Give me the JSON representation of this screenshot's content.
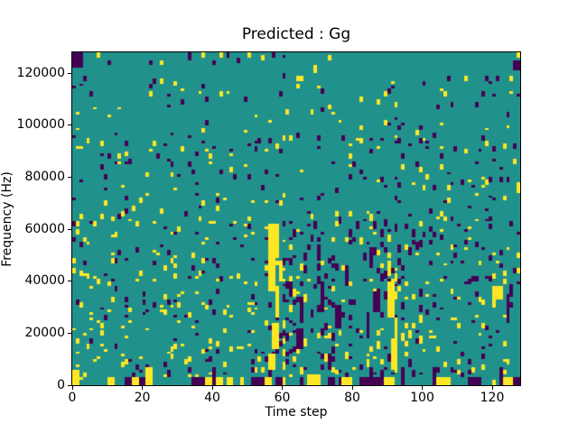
{
  "chart_data": {
    "type": "heatmap",
    "title": "Predicted : Gg",
    "xlabel": "Time step",
    "ylabel": "Frequency (Hz)",
    "x_ticks": [
      0,
      20,
      40,
      60,
      80,
      100,
      120
    ],
    "y_ticks": [
      0,
      20000,
      40000,
      60000,
      80000,
      100000,
      120000
    ],
    "x_range": [
      0,
      128
    ],
    "y_range": [
      0,
      128000
    ],
    "grid": {
      "cols": 128,
      "rows": 128,
      "hz_per_row": 1000
    },
    "legend": "none",
    "colormap": {
      "name": "viridis-ternary",
      "low": "#440154",
      "mid": "#21918c",
      "high": "#fde725"
    },
    "background_value": "mid",
    "value_meaning": {
      "low": "class -1 (purple)",
      "mid": "class 0 (teal)",
      "high": "class 1 (yellow)"
    },
    "noise": {
      "seed": 42,
      "regions": [
        {
          "x0": 0,
          "x1": 128,
          "y0": 96,
          "y1": 117,
          "py": 0.016,
          "pp": 0.016,
          "run": 2
        },
        {
          "x0": 0,
          "x1": 128,
          "y0": 117,
          "y1": 128,
          "py": 0.004,
          "pp": 0.005,
          "run": 2
        },
        {
          "x0": 0,
          "x1": 64,
          "y0": 64,
          "y1": 96,
          "py": 0.02,
          "pp": 0.02,
          "run": 2
        },
        {
          "x0": 64,
          "x1": 128,
          "y0": 64,
          "y1": 96,
          "py": 0.022,
          "pp": 0.025,
          "run": 2
        },
        {
          "x0": 0,
          "x1": 56,
          "y0": 2,
          "y1": 64,
          "py": 0.04,
          "pp": 0.032,
          "run": 2
        },
        {
          "x0": 56,
          "x1": 100,
          "y0": 2,
          "y1": 64,
          "py": 0.05,
          "pp": 0.06,
          "run": 3
        },
        {
          "x0": 100,
          "x1": 128,
          "y0": 2,
          "y1": 64,
          "py": 0.035,
          "pp": 0.04,
          "run": 2
        }
      ]
    },
    "features": [
      {
        "x": 0,
        "y": 122,
        "w": 3,
        "h": 6,
        "c": "p"
      },
      {
        "x": 7,
        "y": 126,
        "w": 1,
        "h": 2,
        "c": "y"
      },
      {
        "x": 22,
        "y": 123,
        "w": 1,
        "h": 2,
        "c": "p"
      },
      {
        "x": 25,
        "y": 123,
        "w": 1,
        "h": 2,
        "c": "y"
      },
      {
        "x": 33,
        "y": 125,
        "w": 1,
        "h": 3,
        "c": "p"
      },
      {
        "x": 37,
        "y": 126,
        "w": 1,
        "h": 2,
        "c": "y"
      },
      {
        "x": 40,
        "y": 123,
        "w": 1,
        "h": 2,
        "c": "p"
      },
      {
        "x": 42,
        "y": 126,
        "w": 1,
        "h": 2,
        "c": "y"
      },
      {
        "x": 44,
        "y": 126,
        "w": 1,
        "h": 2,
        "c": "p"
      },
      {
        "x": 47,
        "y": 124,
        "w": 1,
        "h": 2,
        "c": "p"
      },
      {
        "x": 50,
        "y": 126,
        "w": 1,
        "h": 2,
        "c": "y"
      },
      {
        "x": 54,
        "y": 125,
        "w": 1,
        "h": 2,
        "c": "y"
      },
      {
        "x": 57,
        "y": 126,
        "w": 1,
        "h": 2,
        "c": "p"
      },
      {
        "x": 60,
        "y": 118,
        "w": 1,
        "h": 2,
        "c": "p"
      },
      {
        "x": 64,
        "y": 117,
        "w": 2,
        "h": 2,
        "c": "y"
      },
      {
        "x": 69,
        "y": 120,
        "w": 1,
        "h": 3,
        "c": "y"
      },
      {
        "x": 73,
        "y": 125,
        "w": 1,
        "h": 2,
        "c": "y"
      },
      {
        "x": 107,
        "y": 117,
        "w": 1,
        "h": 2,
        "c": "p"
      },
      {
        "x": 112,
        "y": 117,
        "w": 1,
        "h": 2,
        "c": "y"
      },
      {
        "x": 118,
        "y": 117,
        "w": 1,
        "h": 2,
        "c": "p"
      },
      {
        "x": 121,
        "y": 117,
        "w": 1,
        "h": 2,
        "c": "p"
      },
      {
        "x": 125,
        "y": 117,
        "w": 1,
        "h": 2,
        "c": "y"
      },
      {
        "x": 126,
        "y": 121,
        "w": 2,
        "h": 4,
        "c": "p"
      },
      {
        "x": 127,
        "y": 126,
        "w": 1,
        "h": 2,
        "c": "y"
      },
      {
        "x": 0,
        "y": 0,
        "w": 2,
        "h": 6,
        "c": "y"
      },
      {
        "x": 10,
        "y": 0,
        "w": 2,
        "h": 3,
        "c": "y"
      },
      {
        "x": 15,
        "y": 0,
        "w": 2,
        "h": 3,
        "c": "p"
      },
      {
        "x": 17,
        "y": 0,
        "w": 2,
        "h": 3,
        "c": "y"
      },
      {
        "x": 19,
        "y": 0,
        "w": 2,
        "h": 3,
        "c": "p"
      },
      {
        "x": 21,
        "y": 0,
        "w": 2,
        "h": 7,
        "c": "y"
      },
      {
        "x": 27,
        "y": 3,
        "w": 1,
        "h": 3,
        "c": "p"
      },
      {
        "x": 34,
        "y": 0,
        "w": 5,
        "h": 3,
        "c": "p"
      },
      {
        "x": 38,
        "y": 0,
        "w": 2,
        "h": 3,
        "c": "y"
      },
      {
        "x": 40,
        "y": 0,
        "w": 1,
        "h": 7,
        "c": "p"
      },
      {
        "x": 41,
        "y": 0,
        "w": 2,
        "h": 3,
        "c": "y"
      },
      {
        "x": 44,
        "y": 0,
        "w": 2,
        "h": 3,
        "c": "y"
      },
      {
        "x": 48,
        "y": 0,
        "w": 1,
        "h": 3,
        "c": "y"
      },
      {
        "x": 51,
        "y": 0,
        "w": 4,
        "h": 3,
        "c": "p"
      },
      {
        "x": 55,
        "y": 0,
        "w": 2,
        "h": 3,
        "c": "y"
      },
      {
        "x": 58,
        "y": 0,
        "w": 2,
        "h": 3,
        "c": "p"
      },
      {
        "x": 60,
        "y": 0,
        "w": 1,
        "h": 3,
        "c": "y"
      },
      {
        "x": 65,
        "y": 0,
        "w": 1,
        "h": 3,
        "c": "p"
      },
      {
        "x": 67,
        "y": 0,
        "w": 4,
        "h": 4,
        "c": "y"
      },
      {
        "x": 73,
        "y": 0,
        "w": 2,
        "h": 3,
        "c": "p"
      },
      {
        "x": 76,
        "y": 0,
        "w": 1,
        "h": 3,
        "c": "p"
      },
      {
        "x": 77,
        "y": 0,
        "w": 3,
        "h": 3,
        "c": "y"
      },
      {
        "x": 82,
        "y": 0,
        "w": 7,
        "h": 3,
        "c": "p"
      },
      {
        "x": 85,
        "y": 0,
        "w": 1,
        "h": 7,
        "c": "p"
      },
      {
        "x": 89,
        "y": 0,
        "w": 3,
        "h": 3,
        "c": "y"
      },
      {
        "x": 94,
        "y": 0,
        "w": 1,
        "h": 7,
        "c": "p"
      },
      {
        "x": 97,
        "y": 3,
        "w": 1,
        "h": 3,
        "c": "p"
      },
      {
        "x": 103,
        "y": 0,
        "w": 1,
        "h": 7,
        "c": "p"
      },
      {
        "x": 104,
        "y": 0,
        "w": 4,
        "h": 3,
        "c": "y"
      },
      {
        "x": 113,
        "y": 0,
        "w": 4,
        "h": 3,
        "c": "p"
      },
      {
        "x": 120,
        "y": 0,
        "w": 1,
        "h": 2,
        "c": "y"
      },
      {
        "x": 122,
        "y": 0,
        "w": 1,
        "h": 7,
        "c": "p"
      },
      {
        "x": 123,
        "y": 0,
        "w": 3,
        "h": 3,
        "c": "y"
      },
      {
        "x": 126,
        "y": 0,
        "w": 2,
        "h": 3,
        "c": "p"
      },
      {
        "x": 56,
        "y": 6,
        "w": 2,
        "h": 6,
        "c": "y"
      },
      {
        "x": 57,
        "y": 14,
        "w": 2,
        "h": 10,
        "c": "y"
      },
      {
        "x": 58,
        "y": 26,
        "w": 1,
        "h": 12,
        "c": "y"
      },
      {
        "x": 56,
        "y": 36,
        "w": 2,
        "h": 16,
        "c": "y"
      },
      {
        "x": 56,
        "y": 52,
        "w": 3,
        "h": 10,
        "c": "y"
      },
      {
        "x": 59,
        "y": 40,
        "w": 1,
        "h": 8,
        "c": "y"
      },
      {
        "x": 62,
        "y": 34,
        "w": 1,
        "h": 6,
        "c": "p"
      },
      {
        "x": 64,
        "y": 14,
        "w": 2,
        "h": 8,
        "c": "p"
      },
      {
        "x": 65,
        "y": 24,
        "w": 1,
        "h": 10,
        "c": "p"
      },
      {
        "x": 70,
        "y": 48,
        "w": 1,
        "h": 6,
        "c": "p"
      },
      {
        "x": 71,
        "y": 28,
        "w": 1,
        "h": 12,
        "c": "p"
      },
      {
        "x": 73,
        "y": 6,
        "w": 1,
        "h": 6,
        "c": "p"
      },
      {
        "x": 75,
        "y": 22,
        "w": 2,
        "h": 9,
        "c": "p"
      },
      {
        "x": 78,
        "y": 38,
        "w": 1,
        "h": 8,
        "c": "p"
      },
      {
        "x": 84,
        "y": 18,
        "w": 1,
        "h": 10,
        "c": "p"
      },
      {
        "x": 85,
        "y": 45,
        "w": 1,
        "h": 5,
        "c": "p"
      },
      {
        "x": 86,
        "y": 28,
        "w": 2,
        "h": 8,
        "c": "p"
      },
      {
        "x": 90,
        "y": 26,
        "w": 2,
        "h": 14,
        "c": "y"
      },
      {
        "x": 91,
        "y": 6,
        "w": 2,
        "h": 12,
        "c": "y"
      },
      {
        "x": 90,
        "y": 42,
        "w": 1,
        "h": 6,
        "c": "y"
      },
      {
        "x": 92,
        "y": 18,
        "w": 1,
        "h": 8,
        "c": "y"
      },
      {
        "x": 120,
        "y": 30,
        "w": 1,
        "h": 8,
        "c": "y"
      },
      {
        "x": 121,
        "y": 33,
        "w": 2,
        "h": 5,
        "c": "y"
      },
      {
        "x": 124,
        "y": 26,
        "w": 1,
        "h": 9,
        "c": "p"
      },
      {
        "x": 125,
        "y": 34,
        "w": 1,
        "h": 5,
        "c": "p"
      },
      {
        "x": 127,
        "y": 74,
        "w": 1,
        "h": 4,
        "c": "y"
      }
    ]
  }
}
